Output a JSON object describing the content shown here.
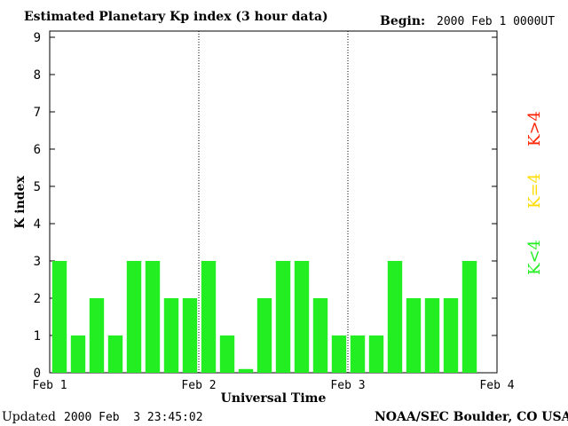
{
  "header": {
    "title": "Estimated Planetary Kp index (3 hour data)",
    "begin_label": "Begin:",
    "begin_value": "2000 Feb 1 0000UT"
  },
  "footer": {
    "updated_label": "Updated",
    "updated_value": "2000 Feb  3 23:45:02",
    "credit": "NOAA/SEC Boulder, CO USA"
  },
  "legend": [
    {
      "label": "K>4",
      "color": "#ff2200"
    },
    {
      "label": "K=4",
      "color": "#ffdd00"
    },
    {
      "label": "K<4",
      "color": "#22ee22"
    }
  ],
  "chart_data": {
    "type": "bar",
    "title": "Estimated Planetary Kp index (3 hour data)",
    "xlabel": "Universal Time",
    "ylabel": "K index",
    "ylim": [
      0,
      9
    ],
    "yticks": [
      "0",
      "1",
      "2",
      "3",
      "4",
      "5",
      "6",
      "7",
      "8",
      "9"
    ],
    "xticks": [
      "Feb 1",
      "Feb 2",
      "Feb 3",
      "Feb 4"
    ],
    "day_separators": [
      "Feb 2",
      "Feb 3"
    ],
    "bar_color": "#22ee22",
    "values": [
      3,
      1,
      2,
      1,
      3,
      3,
      2,
      2,
      3,
      1,
      0.1,
      2,
      3,
      3,
      2,
      1,
      1,
      1,
      3,
      2,
      2,
      2,
      3
    ]
  }
}
